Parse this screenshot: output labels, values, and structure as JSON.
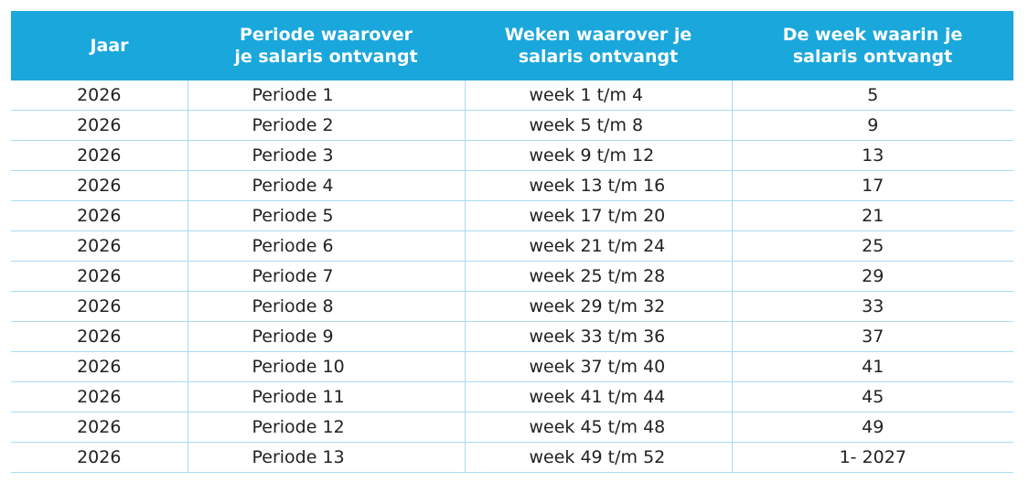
{
  "table": {
    "headers": [
      "Jaar",
      "Periode waarover je salaris ontvangt",
      "Weken waarover je salaris ontvangt",
      "De week waarin je salaris ontvangt"
    ],
    "rows": [
      [
        "2026",
        "Periode 1",
        "week 1 t/m 4",
        "5"
      ],
      [
        "2026",
        "Periode 2",
        "week 5 t/m 8",
        "9"
      ],
      [
        "2026",
        "Periode 3",
        "week 9 t/m 12",
        "13"
      ],
      [
        "2026",
        "Periode 4",
        "week 13 t/m 16",
        "17"
      ],
      [
        "2026",
        "Periode 5",
        "week 17 t/m 20",
        "21"
      ],
      [
        "2026",
        "Periode 6",
        "week 21 t/m 24",
        "25"
      ],
      [
        "2026",
        "Periode 7",
        "week 25 t/m 28",
        "29"
      ],
      [
        "2026",
        "Periode 8",
        "week 29 t/m 32",
        "33"
      ],
      [
        "2026",
        "Periode 9",
        "week 33 t/m 36",
        "37"
      ],
      [
        "2026",
        "Periode 10",
        "week 37 t/m 40",
        "41"
      ],
      [
        "2026",
        "Periode 11",
        "week 41 t/m 44",
        "45"
      ],
      [
        "2026",
        "Periode 12",
        "week 45 t/m 48",
        "49"
      ],
      [
        "2026",
        "Periode 13",
        "week 49 t/m 52",
        "1- 2027"
      ]
    ]
  }
}
